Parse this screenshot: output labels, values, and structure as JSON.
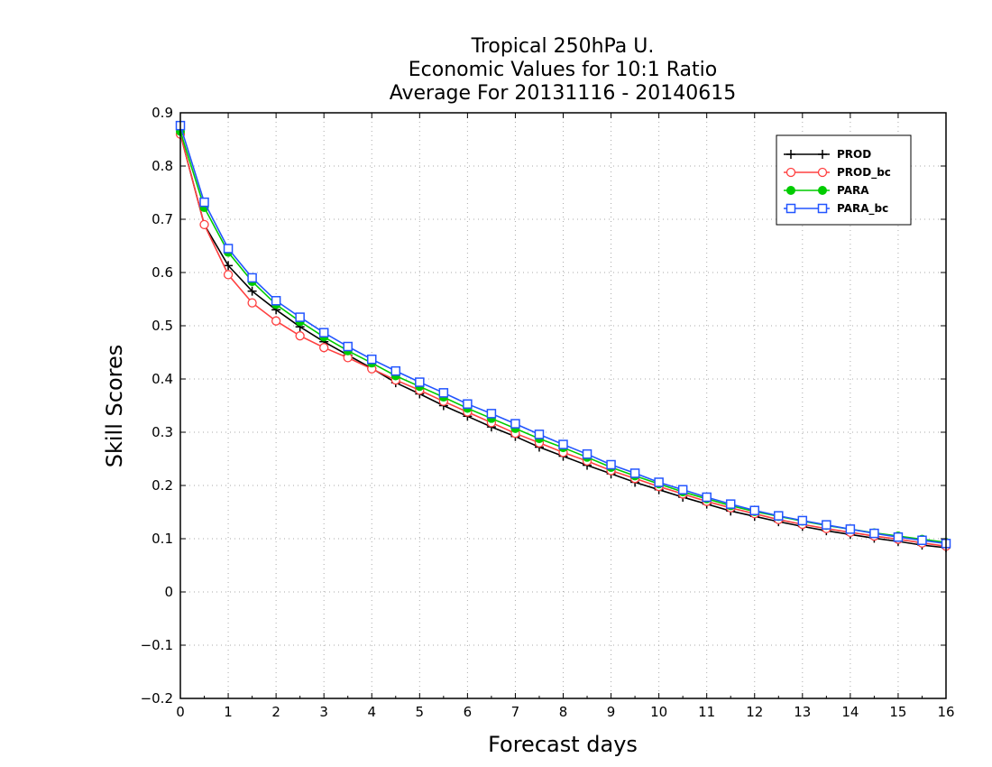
{
  "chart_data": {
    "type": "line",
    "title_lines": [
      "Tropical 250hPa U.",
      "Economic Values for 10:1 Ratio",
      "Average For 20131116 - 20140615"
    ],
    "xlabel": "Forecast days",
    "ylabel": "Skill Scores",
    "xlim": [
      0,
      16
    ],
    "ylim": [
      -0.2,
      0.9
    ],
    "x_ticks": [
      0,
      1,
      2,
      3,
      4,
      5,
      6,
      7,
      8,
      9,
      10,
      11,
      12,
      13,
      14,
      15,
      16
    ],
    "y_ticks": [
      -0.2,
      -0.1,
      0,
      0.1,
      0.2,
      0.3,
      0.4,
      0.5,
      0.6,
      0.7,
      0.8,
      0.9
    ],
    "y_tick_labels": [
      "−0.2",
      "−0.1",
      "0",
      "0.1",
      "0.2",
      "0.3",
      "0.4",
      "0.5",
      "0.6",
      "0.7",
      "0.8",
      "0.9"
    ],
    "grid": true,
    "legend_position": "top-right",
    "x": [
      0,
      0.5,
      1,
      1.5,
      2,
      2.5,
      3,
      3.5,
      4,
      4.5,
      5,
      5.5,
      6,
      6.5,
      7,
      7.5,
      8,
      8.5,
      9,
      9.5,
      10,
      10.5,
      11,
      11.5,
      12,
      12.5,
      13,
      13.5,
      14,
      14.5,
      15,
      15.5,
      16
    ],
    "series": [
      {
        "name": "PROD",
        "color": "#000000",
        "marker": "plus",
        "values": [
          0.86,
          0.69,
          0.613,
          0.565,
          0.53,
          0.498,
          0.47,
          0.445,
          0.42,
          0.393,
          0.372,
          0.35,
          0.33,
          0.31,
          0.292,
          0.272,
          0.255,
          0.238,
          0.222,
          0.206,
          0.192,
          0.178,
          0.165,
          0.152,
          0.142,
          0.132,
          0.123,
          0.115,
          0.108,
          0.101,
          0.095,
          0.088,
          0.083
        ]
      },
      {
        "name": "PROD_bc",
        "color": "#ff4040",
        "marker": "circle",
        "values": [
          0.86,
          0.69,
          0.596,
          0.543,
          0.509,
          0.481,
          0.459,
          0.44,
          0.419,
          0.398,
          0.379,
          0.358,
          0.338,
          0.318,
          0.298,
          0.28,
          0.262,
          0.246,
          0.228,
          0.213,
          0.198,
          0.184,
          0.17,
          0.158,
          0.147,
          0.136,
          0.127,
          0.119,
          0.112,
          0.105,
          0.099,
          0.092,
          0.086
        ]
      },
      {
        "name": "PARA",
        "color": "#00cc00",
        "marker": "filled-circle",
        "values": [
          0.865,
          0.722,
          0.638,
          0.583,
          0.54,
          0.508,
          0.479,
          0.453,
          0.43,
          0.406,
          0.386,
          0.366,
          0.345,
          0.326,
          0.307,
          0.288,
          0.271,
          0.253,
          0.234,
          0.218,
          0.203,
          0.188,
          0.175,
          0.162,
          0.151,
          0.142,
          0.133,
          0.125,
          0.118,
          0.111,
          0.105,
          0.099,
          0.093
        ]
      },
      {
        "name": "PARA_bc",
        "color": "#2255ff",
        "marker": "square",
        "values": [
          0.876,
          0.732,
          0.645,
          0.59,
          0.547,
          0.516,
          0.487,
          0.461,
          0.437,
          0.415,
          0.394,
          0.374,
          0.353,
          0.335,
          0.316,
          0.296,
          0.277,
          0.259,
          0.239,
          0.223,
          0.206,
          0.192,
          0.178,
          0.165,
          0.153,
          0.143,
          0.134,
          0.126,
          0.118,
          0.11,
          0.103,
          0.097,
          0.091
        ]
      }
    ]
  }
}
